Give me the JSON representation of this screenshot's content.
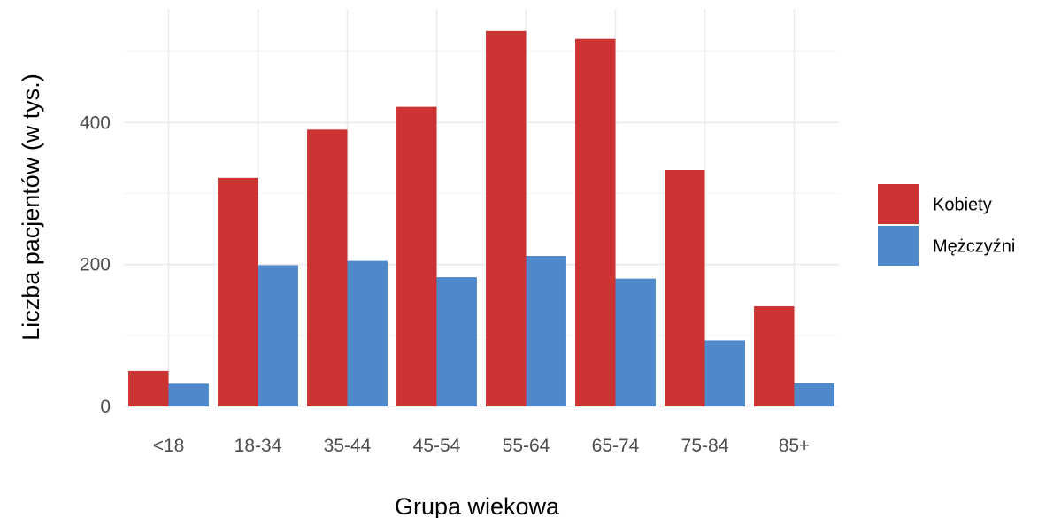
{
  "chart_data": {
    "type": "bar",
    "categories": [
      "<18",
      "18-34",
      "35-44",
      "45-54",
      "55-64",
      "65-74",
      "75-84",
      "85+"
    ],
    "series": [
      {
        "name": "Kobiety",
        "color": "#cc3333",
        "values": [
          50,
          322,
          390,
          422,
          529,
          518,
          333,
          141
        ]
      },
      {
        "name": "Mężczyźni",
        "color": "#5088cc",
        "values": [
          32,
          199,
          205,
          182,
          212,
          180,
          93,
          33
        ]
      }
    ],
    "xlabel": "Grupa wiekowa",
    "ylabel": "Liczba pacjentów (w tys.)",
    "ylim": [
      0,
      560
    ],
    "yticks": [
      0,
      200,
      400
    ],
    "grid": true,
    "legend_position": "right"
  }
}
